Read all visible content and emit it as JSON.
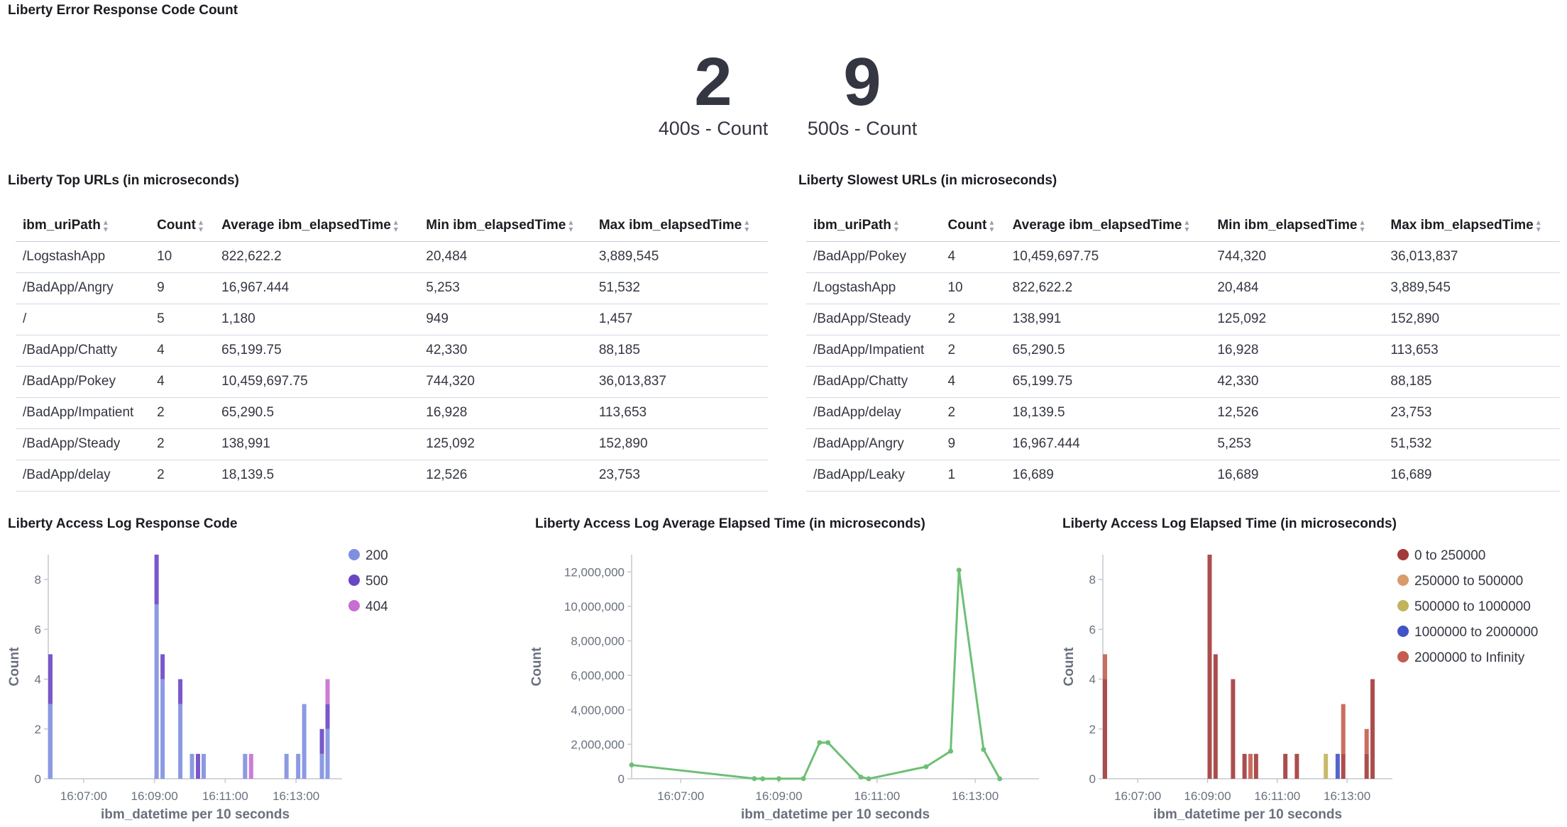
{
  "error_panel": {
    "title": "Liberty Error Response Code Count",
    "metrics": [
      {
        "value": "2",
        "label": "400s - Count"
      },
      {
        "value": "9",
        "label": "500s - Count"
      }
    ]
  },
  "top_urls": {
    "title": "Liberty Top URLs (in microseconds)",
    "columns": [
      "ibm_uriPath",
      "Count",
      "Average ibm_elapsedTime",
      "Min ibm_elapsedTime",
      "Max ibm_elapsedTime"
    ],
    "rows": [
      [
        "/LogstashApp",
        "10",
        "822,622.2",
        "20,484",
        "3,889,545"
      ],
      [
        "/BadApp/Angry",
        "9",
        "16,967.444",
        "5,253",
        "51,532"
      ],
      [
        "/",
        "5",
        "1,180",
        "949",
        "1,457"
      ],
      [
        "/BadApp/Chatty",
        "4",
        "65,199.75",
        "42,330",
        "88,185"
      ],
      [
        "/BadApp/Pokey",
        "4",
        "10,459,697.75",
        "744,320",
        "36,013,837"
      ],
      [
        "/BadApp/Impatient",
        "2",
        "65,290.5",
        "16,928",
        "113,653"
      ],
      [
        "/BadApp/Steady",
        "2",
        "138,991",
        "125,092",
        "152,890"
      ],
      [
        "/BadApp/delay",
        "2",
        "18,139.5",
        "12,526",
        "23,753"
      ]
    ]
  },
  "slowest_urls": {
    "title": "Liberty Slowest URLs (in microseconds)",
    "columns": [
      "ibm_uriPath",
      "Count",
      "Average ibm_elapsedTime",
      "Min ibm_elapsedTime",
      "Max ibm_elapsedTime"
    ],
    "rows": [
      [
        "/BadApp/Pokey",
        "4",
        "10,459,697.75",
        "744,320",
        "36,013,837"
      ],
      [
        "/LogstashApp",
        "10",
        "822,622.2",
        "20,484",
        "3,889,545"
      ],
      [
        "/BadApp/Steady",
        "2",
        "138,991",
        "125,092",
        "152,890"
      ],
      [
        "/BadApp/Impatient",
        "2",
        "65,290.5",
        "16,928",
        "113,653"
      ],
      [
        "/BadApp/Chatty",
        "4",
        "65,199.75",
        "42,330",
        "88,185"
      ],
      [
        "/BadApp/delay",
        "2",
        "18,139.5",
        "12,526",
        "23,753"
      ],
      [
        "/BadApp/Angry",
        "9",
        "16,967.444",
        "5,253",
        "51,532"
      ],
      [
        "/BadApp/Leaky",
        "1",
        "16,689",
        "16,689",
        "16,689"
      ]
    ]
  },
  "icons": {
    "sort": "sort-icon"
  },
  "chart_data": [
    {
      "type": "bar",
      "stacked": true,
      "title": "Liberty Access Log Response Code",
      "xlabel": "ibm_datetime per 10 seconds",
      "ylabel": "Count",
      "x_range_minutes": [
        6.0,
        14.3
      ],
      "ylim": [
        0,
        9
      ],
      "yticks": [
        0,
        2,
        4,
        6,
        8
      ],
      "xticks": [
        {
          "minute": 7,
          "label": "16:07:00"
        },
        {
          "minute": 9,
          "label": "16:09:00"
        },
        {
          "minute": 11,
          "label": "16:11:00"
        },
        {
          "minute": 13,
          "label": "16:13:00"
        }
      ],
      "legend_position": "top-right",
      "grid": false,
      "series": [
        {
          "name": "200",
          "color": "#7f8fe0"
        },
        {
          "name": "500",
          "color": "#6946c4"
        },
        {
          "name": "404",
          "color": "#c66ed2"
        }
      ],
      "bars": [
        {
          "t": 6.0,
          "values": [
            3,
            2,
            0
          ]
        },
        {
          "t": 9.0,
          "values": [
            7,
            2,
            0
          ]
        },
        {
          "t": 9.17,
          "values": [
            4,
            1,
            0
          ]
        },
        {
          "t": 9.67,
          "values": [
            3,
            1,
            0
          ]
        },
        {
          "t": 10.0,
          "values": [
            1,
            0,
            0
          ]
        },
        {
          "t": 10.17,
          "values": [
            0,
            1,
            0
          ]
        },
        {
          "t": 10.33,
          "values": [
            1,
            0,
            0
          ]
        },
        {
          "t": 11.5,
          "values": [
            1,
            0,
            0
          ]
        },
        {
          "t": 11.67,
          "values": [
            0,
            0,
            1
          ]
        },
        {
          "t": 12.67,
          "values": [
            1,
            0,
            0
          ]
        },
        {
          "t": 13.0,
          "values": [
            1,
            0,
            0
          ]
        },
        {
          "t": 13.17,
          "values": [
            3,
            0,
            0
          ]
        },
        {
          "t": 13.67,
          "values": [
            1,
            1,
            0
          ]
        },
        {
          "t": 13.83,
          "values": [
            2,
            1,
            1
          ]
        }
      ]
    },
    {
      "type": "line",
      "title": "Liberty Access Log Average Elapsed Time (in microseconds)",
      "xlabel": "ibm_datetime per 10 seconds",
      "ylabel": "Count",
      "x_range_minutes": [
        6.0,
        14.3
      ],
      "ylim": [
        0,
        13000000
      ],
      "yticks": [
        {
          "v": 0,
          "label": "0"
        },
        {
          "v": 2000000,
          "label": "2,000,000"
        },
        {
          "v": 4000000,
          "label": "4,000,000"
        },
        {
          "v": 6000000,
          "label": "6,000,000"
        },
        {
          "v": 8000000,
          "label": "8,000,000"
        },
        {
          "v": 10000000,
          "label": "10,000,000"
        },
        {
          "v": 12000000,
          "label": "12,000,000"
        }
      ],
      "xticks": [
        {
          "minute": 7,
          "label": "16:07:00"
        },
        {
          "minute": 9,
          "label": "16:09:00"
        },
        {
          "minute": 11,
          "label": "16:11:00"
        },
        {
          "minute": 13,
          "label": "16:13:00"
        }
      ],
      "color": "#6dbf75",
      "grid": false,
      "points": [
        {
          "t": 6.0,
          "y": 800000
        },
        {
          "t": 8.5,
          "y": 10000
        },
        {
          "t": 8.67,
          "y": 0
        },
        {
          "t": 9.0,
          "y": 5000
        },
        {
          "t": 9.5,
          "y": 10000
        },
        {
          "t": 9.83,
          "y": 2100000
        },
        {
          "t": 10.0,
          "y": 2100000
        },
        {
          "t": 10.67,
          "y": 100000
        },
        {
          "t": 10.83,
          "y": 0
        },
        {
          "t": 12.0,
          "y": 700000
        },
        {
          "t": 12.5,
          "y": 1600000
        },
        {
          "t": 12.67,
          "y": 12100000
        },
        {
          "t": 13.17,
          "y": 1700000
        },
        {
          "t": 13.5,
          "y": 0
        }
      ]
    },
    {
      "type": "bar",
      "stacked": true,
      "title": "Liberty Access Log Elapsed Time (in microseconds)",
      "xlabel": "ibm_datetime per 10 seconds",
      "ylabel": "Count",
      "x_range_minutes": [
        6.0,
        14.3
      ],
      "ylim": [
        0,
        9
      ],
      "yticks": [
        0,
        2,
        4,
        6,
        8
      ],
      "xticks": [
        {
          "minute": 7,
          "label": "16:07:00"
        },
        {
          "minute": 9,
          "label": "16:09:00"
        },
        {
          "minute": 11,
          "label": "16:11:00"
        },
        {
          "minute": 13,
          "label": "16:13:00"
        }
      ],
      "legend_position": "top-right",
      "grid": false,
      "series": [
        {
          "name": "0 to 250000",
          "color": "#a33a3a"
        },
        {
          "name": "250000 to 500000",
          "color": "#d99a6c"
        },
        {
          "name": "500000 to 1000000",
          "color": "#c3b35b"
        },
        {
          "name": "1000000 to 2000000",
          "color": "#4154c4"
        },
        {
          "name": "2000000 to Infinity",
          "color": "#c45d4f"
        }
      ],
      "bars": [
        {
          "t": 6.0,
          "values": [
            4,
            0,
            0,
            0,
            1
          ]
        },
        {
          "t": 9.0,
          "values": [
            9,
            0,
            0,
            0,
            0
          ]
        },
        {
          "t": 9.17,
          "values": [
            5,
            0,
            0,
            0,
            0
          ]
        },
        {
          "t": 9.67,
          "values": [
            4,
            0,
            0,
            0,
            0
          ]
        },
        {
          "t": 10.0,
          "values": [
            1,
            0,
            0,
            0,
            0
          ]
        },
        {
          "t": 10.17,
          "values": [
            0,
            0,
            0,
            0,
            1
          ]
        },
        {
          "t": 10.33,
          "values": [
            1,
            0,
            0,
            0,
            0
          ]
        },
        {
          "t": 11.17,
          "values": [
            1,
            0,
            0,
            0,
            0
          ]
        },
        {
          "t": 11.5,
          "values": [
            1,
            0,
            0,
            0,
            0
          ]
        },
        {
          "t": 12.33,
          "values": [
            0,
            0,
            1,
            0,
            0
          ]
        },
        {
          "t": 12.67,
          "values": [
            0,
            0,
            0,
            1,
            0
          ]
        },
        {
          "t": 12.83,
          "values": [
            1,
            0,
            0,
            0,
            2
          ]
        },
        {
          "t": 13.5,
          "values": [
            1,
            0,
            0,
            0,
            1
          ]
        },
        {
          "t": 13.67,
          "values": [
            4,
            0,
            0,
            0,
            0
          ]
        }
      ]
    }
  ]
}
